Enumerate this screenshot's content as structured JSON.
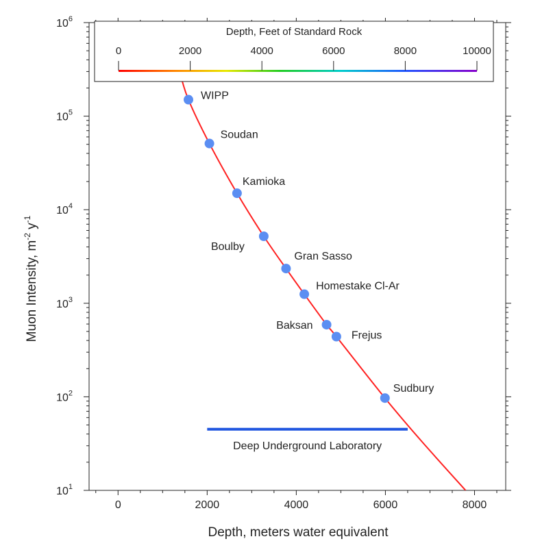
{
  "chart_data": {
    "type": "scatter",
    "xlabel": "Depth, meters water equivalent",
    "ylabel": {
      "base": "Muon Intensity, m",
      "exp1": "-2",
      "mid": " y",
      "exp2": "-1"
    },
    "xlim": [
      -650,
      8700
    ],
    "ylim": [
      10,
      1000000
    ],
    "y_scale": "log",
    "x_ticks": [
      0,
      2000,
      4000,
      6000,
      8000
    ],
    "x_tick_labels": [
      "0",
      "2000",
      "4000",
      "6000",
      "8000"
    ],
    "y_ticks": [
      10,
      100,
      1000,
      10000,
      100000,
      1000000
    ],
    "y_tick_labels": [
      {
        "base": "10",
        "exp": "1"
      },
      {
        "base": "10",
        "exp": "2"
      },
      {
        "base": "10",
        "exp": "3"
      },
      {
        "base": "10",
        "exp": "4"
      },
      {
        "base": "10",
        "exp": "5"
      },
      {
        "base": "10",
        "exp": "6"
      }
    ],
    "points": [
      {
        "label": "WIPP",
        "x": 1580,
        "y": 150000
      },
      {
        "label": "Soudan",
        "x": 2050,
        "y": 51000
      },
      {
        "label": "Kamioka",
        "x": 2670,
        "y": 15000
      },
      {
        "label": "Boulby",
        "x": 3270,
        "y": 5200
      },
      {
        "label": "Gran Sasso",
        "x": 3770,
        "y": 2350
      },
      {
        "label": "Homestake Cl-Ar",
        "x": 4180,
        "y": 1250
      },
      {
        "label": "Baksan",
        "x": 4680,
        "y": 590
      },
      {
        "label": "Frejus",
        "x": 4900,
        "y": 440
      },
      {
        "label": "Sudbury",
        "x": 5990,
        "y": 97
      }
    ],
    "fit_curve": {
      "x": [
        1380,
        1580,
        2050,
        2670,
        3270,
        3770,
        4180,
        4680,
        4900,
        5990,
        6800,
        7800
      ],
      "y": [
        300000,
        150000,
        51000,
        15000,
        5200,
        2350,
        1250,
        590,
        440,
        97,
        34,
        10
      ]
    },
    "range_bar": {
      "label": "Deep Underground Laboratory",
      "x": [
        2000,
        6500
      ],
      "y": 45
    },
    "colorbar": {
      "title": "Depth, Feet of Standard Rock",
      "ticks": [
        0,
        2000,
        4000,
        6000,
        8000,
        10000
      ],
      "tick_labels": [
        "0",
        "2000",
        "4000",
        "6000",
        "8000",
        "10000"
      ],
      "range": [
        0,
        10000
      ]
    },
    "colors": {
      "curve": "#ff2020",
      "marker": "#5b8ef2",
      "bar": "#1f55e0",
      "axis": "#222222"
    }
  }
}
